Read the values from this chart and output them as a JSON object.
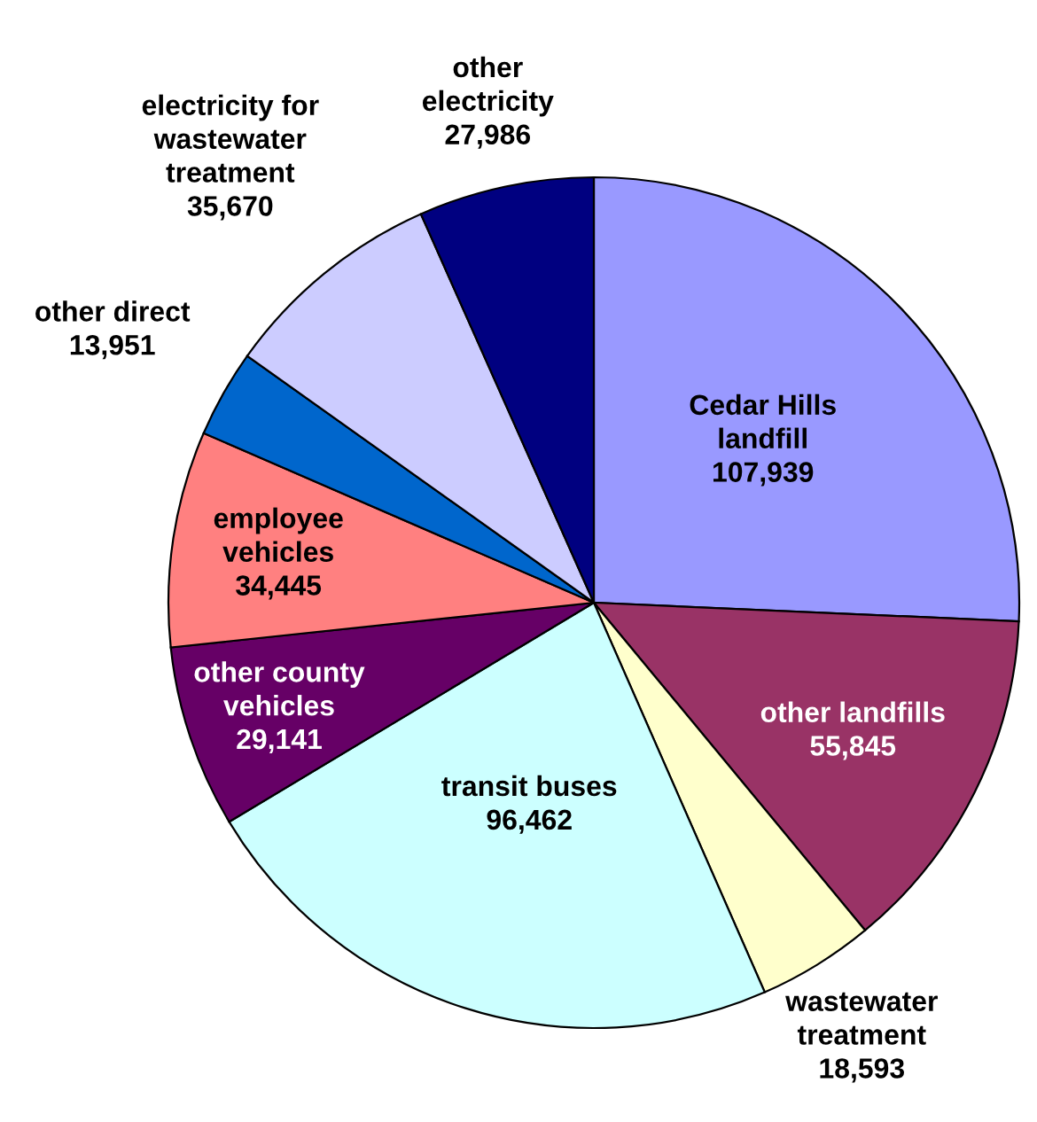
{
  "chart_data": {
    "type": "pie",
    "categories": [
      "Cedar Hills\nlandfill",
      "other landfills",
      "wastewater\ntreatment",
      "transit buses",
      "other county\nvehicles",
      "employee\nvehicles",
      "other direct",
      "electricity for\nwastewater\ntreatment",
      "other\nelectricity"
    ],
    "values": [
      107939,
      55845,
      18593,
      96462,
      29141,
      34445,
      13951,
      35670,
      27986
    ],
    "value_labels": [
      "107,939",
      "55,845",
      "18,593",
      "96,462",
      "29,141",
      "34,445",
      "13,951",
      "35,670",
      "27,986"
    ],
    "colors": [
      "#9999ff",
      "#993366",
      "#ffffcc",
      "#ccffff",
      "#660066",
      "#ff8080",
      "#0066cc",
      "#ccccff",
      "#000080"
    ],
    "legend": false
  }
}
